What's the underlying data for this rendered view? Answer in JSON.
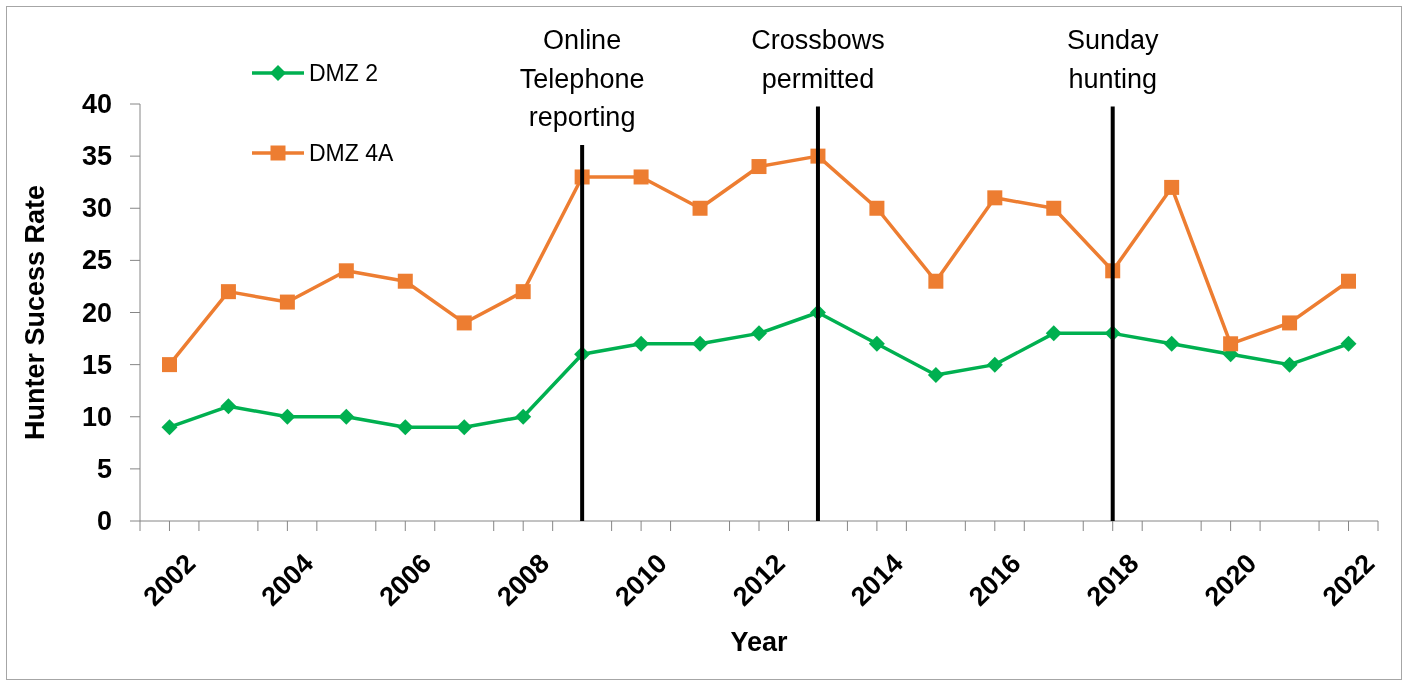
{
  "chart_data": {
    "type": "line",
    "xlabel": "Year",
    "ylabel": "Hunter Sucess Rate",
    "x": [
      2002,
      2003,
      2004,
      2005,
      2006,
      2007,
      2008,
      2009,
      2010,
      2011,
      2012,
      2013,
      2014,
      2015,
      2016,
      2017,
      2018,
      2019,
      2020,
      2021,
      2022
    ],
    "xlim": [
      2001.5,
      2022.5
    ],
    "xticks": [
      {
        "value": 2001.5,
        "label": null
      },
      2002,
      {
        "value": 2002.5,
        "label": null
      },
      {
        "value": 2003.5,
        "label": null
      },
      2004,
      {
        "value": 2004.5,
        "label": null
      },
      {
        "value": 2005.5,
        "label": null
      },
      2006,
      {
        "value": 2006.5,
        "label": null
      },
      {
        "value": 2007.5,
        "label": null
      },
      2008,
      {
        "value": 2008.5,
        "label": null
      },
      {
        "value": 2009.5,
        "label": null
      },
      2010,
      {
        "value": 2010.5,
        "label": null
      },
      {
        "value": 2011.5,
        "label": null
      },
      2012,
      {
        "value": 2012.5,
        "label": null
      },
      {
        "value": 2013.5,
        "label": null
      },
      2014,
      {
        "value": 2014.5,
        "label": null
      },
      {
        "value": 2015.5,
        "label": null
      },
      2016,
      {
        "value": 2016.5,
        "label": null
      },
      {
        "value": 2017.5,
        "label": null
      },
      2018,
      {
        "value": 2018.5,
        "label": null
      },
      {
        "value": 2019.5,
        "label": null
      },
      2020,
      {
        "value": 2020.5,
        "label": null
      },
      {
        "value": 2021.5,
        "label": null
      },
      2022,
      {
        "value": 2022.5,
        "label": null
      }
    ],
    "ylim": [
      0,
      40
    ],
    "yticks": [
      0,
      5,
      10,
      15,
      20,
      25,
      30,
      35,
      40
    ],
    "legend": "top left",
    "series": [
      {
        "name": "DMZ 2",
        "color": "#00b050",
        "marker": "diamond",
        "values": [
          9,
          11,
          10,
          10,
          9,
          9,
          10,
          16,
          17,
          17,
          18,
          20,
          17,
          14,
          15,
          18,
          18,
          17,
          16,
          15,
          17
        ]
      },
      {
        "name": "DMZ 4A",
        "color": "#ed7d31",
        "marker": "square",
        "values": [
          15,
          22,
          21,
          24,
          23,
          19,
          22,
          33,
          33,
          30,
          34,
          35,
          30,
          23,
          31,
          30,
          24,
          32,
          17,
          19,
          23
        ]
      }
    ],
    "ref_lines": [
      {
        "axis": "x",
        "value": 2009,
        "label": "Online Telephone reporting",
        "color": "#000000"
      },
      {
        "axis": "x",
        "value": 2013,
        "label": "Crossbows permitted",
        "color": "#000000"
      },
      {
        "axis": "x",
        "value": 2018,
        "label": "Sunday hunting",
        "color": "#000000"
      }
    ]
  }
}
